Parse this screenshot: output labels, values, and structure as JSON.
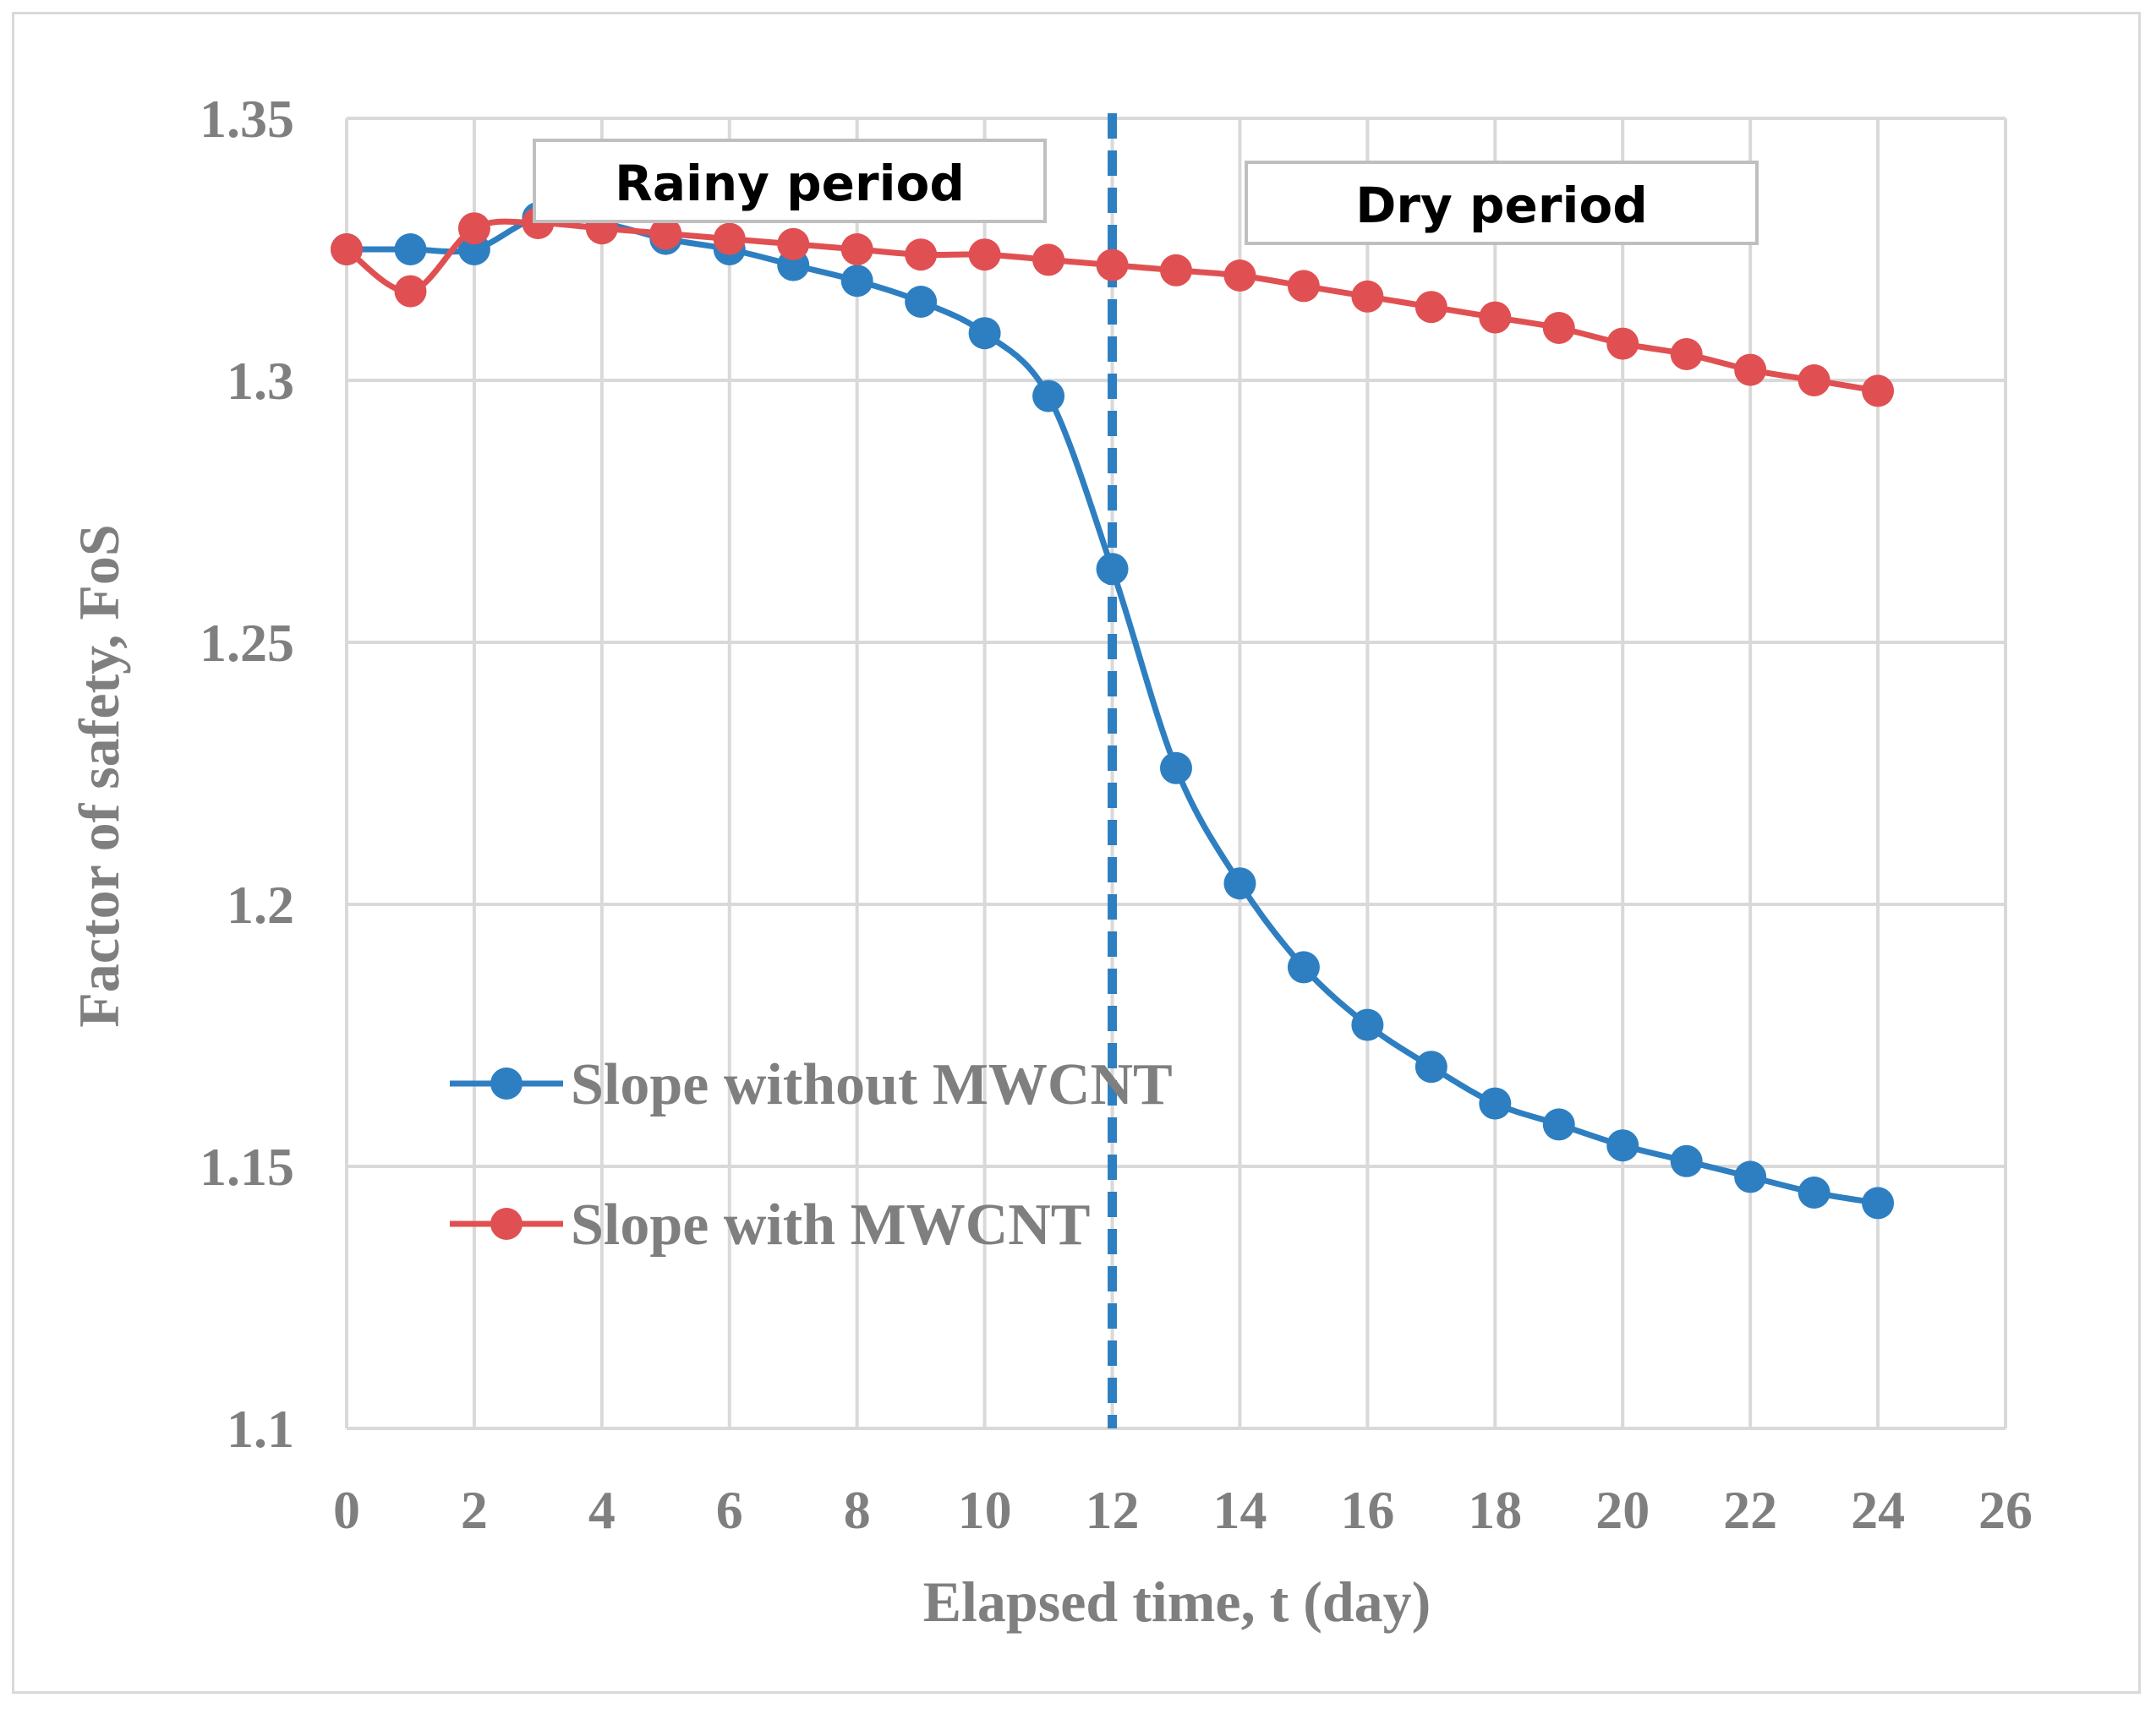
{
  "chart_data": {
    "type": "line",
    "title": "",
    "xlabel": "Elapsed time, t (day)",
    "ylabel": "Factor of safety, FoS",
    "xlim": [
      0,
      26
    ],
    "ylim": [
      1.1,
      1.35
    ],
    "xticks": [
      0,
      2,
      4,
      6,
      8,
      10,
      12,
      14,
      16,
      18,
      20,
      22,
      24,
      26
    ],
    "yticks": [
      1.1,
      1.15,
      1.2,
      1.25,
      1.3,
      1.35
    ],
    "ytick_labels": [
      "1.1",
      "1.15",
      "1.2",
      "1.25",
      "1.3",
      "1.35"
    ],
    "grid": true,
    "series": [
      {
        "name": "Slope without MWCNT",
        "color": "#2e7fc1",
        "x": [
          0,
          1,
          2,
          3,
          4,
          5,
          6,
          7,
          8,
          9,
          10,
          11,
          12,
          13,
          14,
          15,
          16,
          17,
          18,
          19,
          20,
          21,
          22,
          23,
          24
        ],
        "values": [
          1.325,
          1.325,
          1.325,
          1.331,
          1.33,
          1.327,
          1.325,
          1.322,
          1.319,
          1.315,
          1.309,
          1.297,
          1.264,
          1.226,
          1.204,
          1.188,
          1.177,
          1.169,
          1.162,
          1.158,
          1.154,
          1.151,
          1.148,
          1.145,
          1.143
        ]
      },
      {
        "name": "Slope with MWCNT",
        "color": "#e05052",
        "x": [
          0,
          1,
          2,
          3,
          4,
          5,
          6,
          7,
          8,
          9,
          10,
          11,
          12,
          13,
          14,
          15,
          16,
          17,
          18,
          19,
          20,
          21,
          22,
          23,
          24
        ],
        "values": [
          1.325,
          1.317,
          1.329,
          1.33,
          1.329,
          1.328,
          1.327,
          1.326,
          1.325,
          1.324,
          1.324,
          1.323,
          1.322,
          1.321,
          1.32,
          1.318,
          1.316,
          1.314,
          1.312,
          1.31,
          1.307,
          1.305,
          1.302,
          1.3,
          1.298
        ]
      }
    ],
    "vertical_marker": {
      "x": 12,
      "color": "#2e7fc1",
      "style": "dashed"
    },
    "annotations": [
      {
        "text": "Rainy period"
      },
      {
        "text": "Dry period"
      }
    ],
    "legend": "center-left"
  }
}
